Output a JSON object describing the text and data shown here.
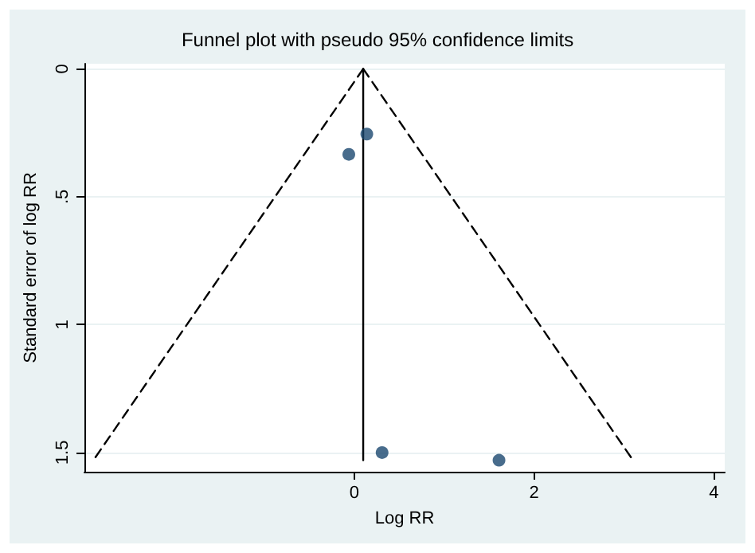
{
  "chart_data": {
    "type": "scatter",
    "title": "Funnel plot with pseudo 95% confidence limits",
    "xlabel": "Log RR",
    "ylabel": "Standard error of log RR",
    "xlim": [
      -3.0,
      4.12
    ],
    "xticks": [
      0,
      2,
      4
    ],
    "ylim": [
      1.575,
      -0.02
    ],
    "yticks": [
      0,
      {
        "value": 0.5,
        "label": ".5"
      },
      1,
      1.5
    ],
    "grid": "y",
    "series": [
      {
        "color": "#1a476f",
        "marker": "circle",
        "x": [
          0.14,
          -0.06,
          0.31,
          1.61
        ],
        "values": [
          0.255,
          0.334,
          1.5,
          1.53
        ]
      },
      {
        "type": "line",
        "color": "#000000",
        "marker": "none",
        "line_style": "solid",
        "x": [
          0.1,
          0.1
        ],
        "values": [
          0,
          1.53
        ]
      },
      {
        "type": "line",
        "color": "#000000",
        "marker": "none",
        "line_style": "dashed",
        "x": [
          0.1,
          -2.9
        ],
        "values": [
          0,
          1.53
        ]
      },
      {
        "type": "line",
        "color": "#000000",
        "marker": "none",
        "line_style": "dashed",
        "x": [
          0.1,
          3.1
        ],
        "values": [
          0,
          1.53
        ]
      }
    ]
  }
}
